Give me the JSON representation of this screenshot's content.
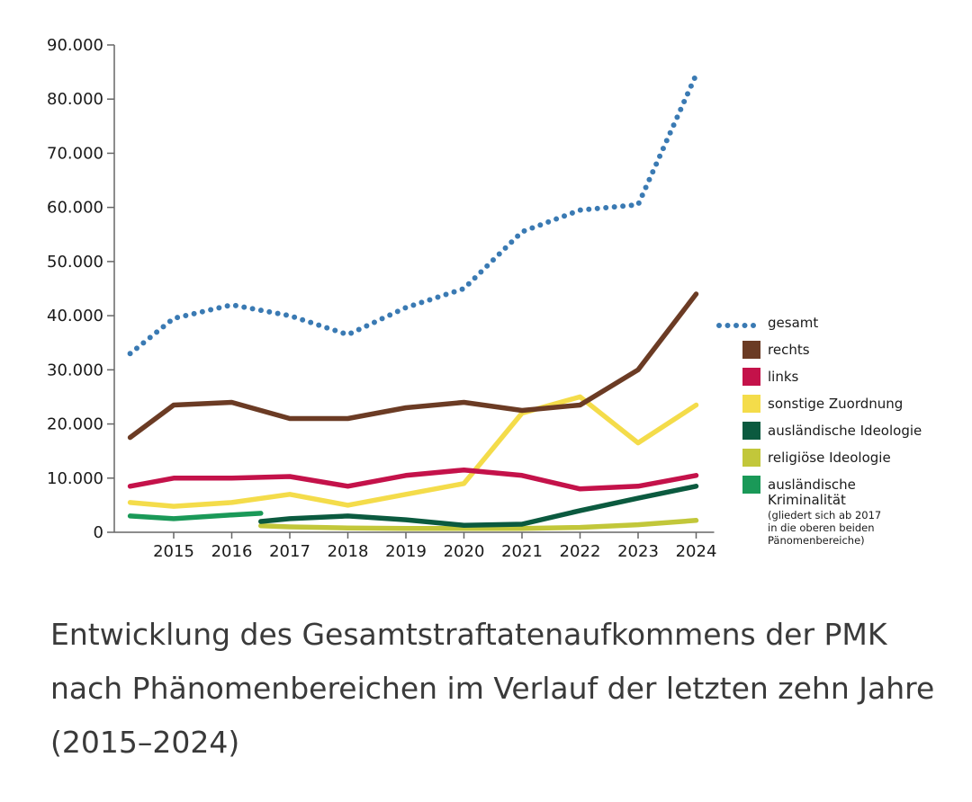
{
  "caption": "Entwicklung des Gesamtstraftatenaufkommens der PMK nach Phänomenbereichen im Verlauf der letzten zehn Jahre (2015–2024)",
  "chart_data": {
    "type": "line",
    "title": "",
    "xlabel": "",
    "ylabel": "",
    "x": [
      2014.25,
      2015,
      2016,
      2016.5,
      2017,
      2018,
      2019,
      2020,
      2021,
      2022,
      2023,
      2024
    ],
    "x_ticks": [
      "2015",
      "2016",
      "2017",
      "2018",
      "2019",
      "2020",
      "2021",
      "2022",
      "2023",
      "2024"
    ],
    "y_ticks": [
      "0",
      "10.000",
      "20.000",
      "30.000",
      "40.000",
      "50.000",
      "60.000",
      "70.000",
      "80.000",
      "90.000"
    ],
    "ylim": [
      0,
      90000
    ],
    "grid": false,
    "legend_position": "right",
    "series": [
      {
        "key": "gesamt",
        "name": "gesamt",
        "color": "#3a7ab3",
        "style": "dotted",
        "points": [
          [
            2014.25,
            33000
          ],
          [
            2015,
            39500
          ],
          [
            2016,
            42000
          ],
          [
            2017,
            40000
          ],
          [
            2018,
            36500
          ],
          [
            2019,
            41500
          ],
          [
            2020,
            45000
          ],
          [
            2021,
            55500
          ],
          [
            2022,
            59500
          ],
          [
            2023,
            60500
          ],
          [
            2024,
            84500
          ]
        ]
      },
      {
        "key": "rechts",
        "name": "rechts",
        "color": "#6b3b24",
        "style": "solid",
        "points": [
          [
            2014.25,
            17500
          ],
          [
            2015,
            23500
          ],
          [
            2016,
            24000
          ],
          [
            2017,
            21000
          ],
          [
            2018,
            21000
          ],
          [
            2019,
            23000
          ],
          [
            2020,
            24000
          ],
          [
            2021,
            22500
          ],
          [
            2022,
            23500
          ],
          [
            2023,
            30000
          ],
          [
            2024,
            44000
          ]
        ]
      },
      {
        "key": "links",
        "name": "links",
        "color": "#c4124a",
        "style": "solid",
        "points": [
          [
            2014.25,
            8500
          ],
          [
            2015,
            10000
          ],
          [
            2016,
            10000
          ],
          [
            2017,
            10300
          ],
          [
            2018,
            8500
          ],
          [
            2019,
            10500
          ],
          [
            2020,
            11500
          ],
          [
            2021,
            10500
          ],
          [
            2022,
            8000
          ],
          [
            2023,
            8500
          ],
          [
            2024,
            10500
          ]
        ]
      },
      {
        "key": "sonstige",
        "name": "sonstige Zuordnung",
        "color": "#f4dc4a",
        "style": "solid",
        "points": [
          [
            2014.25,
            5500
          ],
          [
            2015,
            4800
          ],
          [
            2016,
            5500
          ],
          [
            2017,
            7000
          ],
          [
            2018,
            5000
          ],
          [
            2019,
            7000
          ],
          [
            2020,
            9000
          ],
          [
            2021,
            22000
          ],
          [
            2022,
            25000
          ],
          [
            2023,
            16500
          ],
          [
            2024,
            23500
          ]
        ]
      },
      {
        "key": "auslaendisch",
        "name": "ausländische Ideologie",
        "color": "#0b5a3f",
        "style": "solid",
        "points": [
          [
            2016.5,
            2000
          ],
          [
            2017,
            2500
          ],
          [
            2018,
            3000
          ],
          [
            2019,
            2300
          ],
          [
            2020,
            1300
          ],
          [
            2021,
            1500
          ],
          [
            2022,
            4000
          ],
          [
            2023,
            6300
          ],
          [
            2024,
            8500
          ]
        ]
      },
      {
        "key": "religioes",
        "name": "religiöse Ideologie",
        "color": "#c2c73a",
        "style": "solid",
        "points": [
          [
            2016.5,
            1200
          ],
          [
            2017,
            1000
          ],
          [
            2018,
            800
          ],
          [
            2019,
            700
          ],
          [
            2020,
            700
          ],
          [
            2021,
            700
          ],
          [
            2022,
            900
          ],
          [
            2023,
            1400
          ],
          [
            2024,
            2200
          ]
        ]
      },
      {
        "key": "kriminalitaet",
        "name": "ausländische Kriminalität",
        "color": "#1a9958",
        "style": "solid",
        "points": [
          [
            2014.25,
            3000
          ],
          [
            2015,
            2500
          ],
          [
            2016,
            3200
          ],
          [
            2016.5,
            3500
          ]
        ]
      }
    ],
    "legend": [
      {
        "key": "gesamt",
        "label": "gesamt"
      },
      {
        "key": "rechts",
        "label": "rechts"
      },
      {
        "key": "links",
        "label": "links"
      },
      {
        "key": "sonstige",
        "label": "sonstige Zuordnung"
      },
      {
        "key": "auslaendisch",
        "label": "ausländische Ideologie"
      },
      {
        "key": "religioes",
        "label": "religiöse Ideologie"
      },
      {
        "key": "kriminalitaet",
        "label": "ausländische",
        "label2": "Kriminalität",
        "note": [
          "(gliedert sich ab 2017",
          "in die oberen beiden",
          "Pänomenbereiche)"
        ]
      }
    ]
  }
}
